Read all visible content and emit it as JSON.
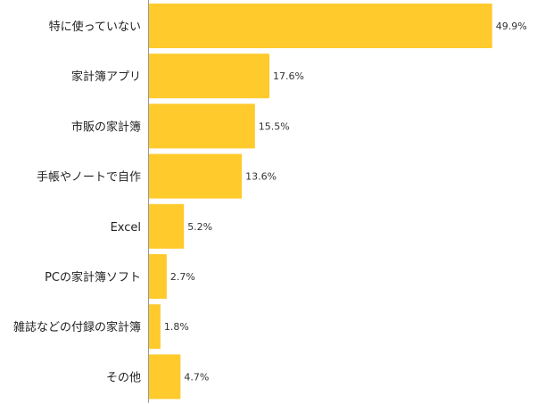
{
  "chart_data": {
    "type": "bar",
    "orientation": "horizontal",
    "categories": [
      "特に使っていない",
      "家計簿アプリ",
      "市販の家計簿",
      "手帳やノートで自作",
      "Excel",
      "PCの家計簿ソフト",
      "雑誌などの付録の家計簿",
      "その他"
    ],
    "values": [
      49.9,
      17.6,
      15.5,
      13.6,
      5.2,
      2.7,
      1.8,
      4.7
    ],
    "value_labels": [
      "49.9%",
      "17.6%",
      "15.5%",
      "13.6%",
      "5.2%",
      "2.7%",
      "1.8%",
      "4.7%"
    ],
    "xlim": [
      0,
      55.5
    ],
    "bar_color": "#FFCA2C",
    "axis_color": "#999999",
    "grid": false,
    "legend": "none"
  }
}
